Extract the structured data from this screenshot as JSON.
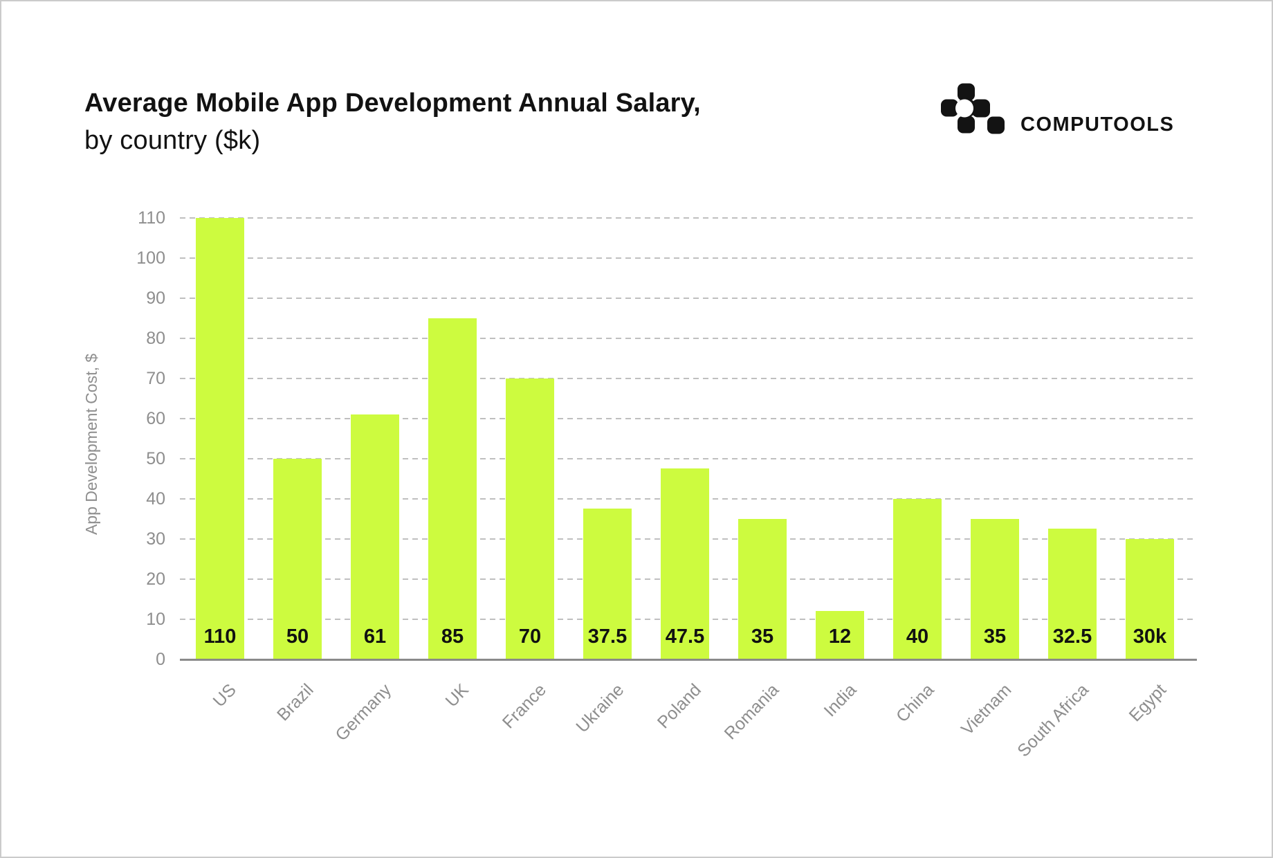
{
  "header": {
    "title_line1": "Average Mobile App Development Annual Salary,",
    "title_line2": "by country ($k)",
    "brand": "COMPUTOOLS"
  },
  "chart_data": {
    "type": "bar",
    "title": "Average Mobile App Development Annual Salary, by country ($k)",
    "xlabel": "",
    "ylabel": "App Development Cost, $",
    "categories": [
      "US",
      "Brazil",
      "Germany",
      "UK",
      "France",
      "Ukraine",
      "Poland",
      "Romania",
      "India",
      "China",
      "Vietnam",
      "South Africa",
      "Egypt"
    ],
    "values": [
      110,
      50,
      61,
      85,
      70,
      37.5,
      47.5,
      35,
      12,
      40,
      35,
      32.5,
      30
    ],
    "bar_value_labels": [
      "110",
      "50",
      "61",
      "85",
      "70",
      "37.5",
      "47.5",
      "35",
      "12",
      "40",
      "35",
      "32.5",
      "30k"
    ],
    "yticks": [
      0,
      10,
      20,
      30,
      40,
      50,
      60,
      70,
      80,
      90,
      100,
      110
    ],
    "ylim": [
      0,
      110
    ],
    "grid": "horizontal dashed",
    "legend": "none",
    "bar_color": "#CDFB3F",
    "colors": {
      "axis_line": "#8A8A8A",
      "gridline": "#BFBFBF",
      "tick_text": "#8E8E8E",
      "value_label_text": "#111111",
      "title_text": "#121212",
      "canvas_border": "#CBCBCB",
      "logo": "#131313"
    }
  }
}
